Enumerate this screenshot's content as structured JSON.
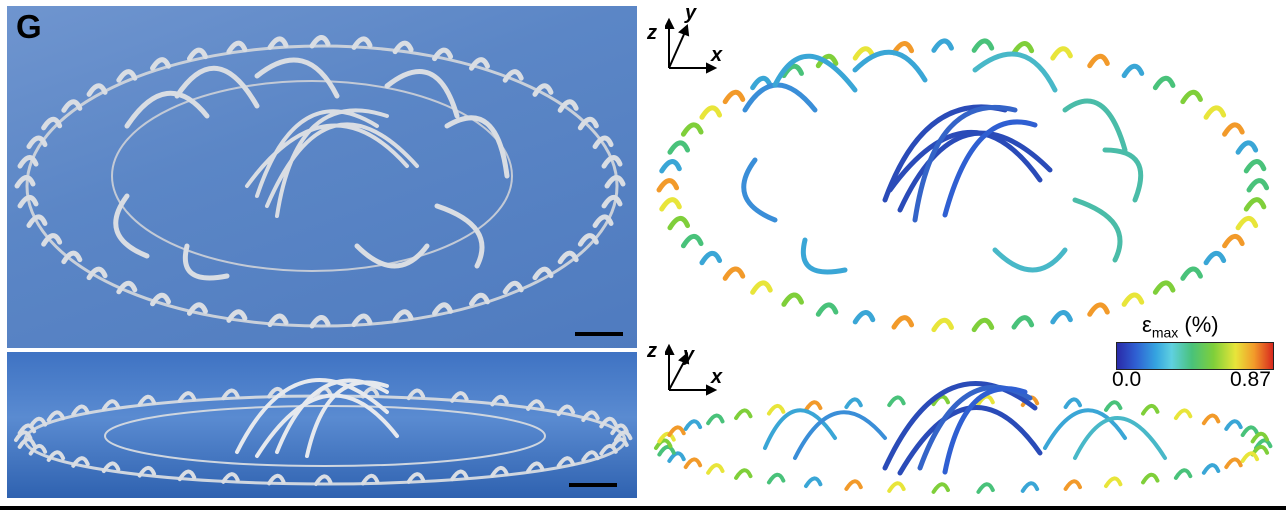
{
  "figure": {
    "panel_label": "G",
    "colorbar": {
      "symbol": "ε",
      "subscript": "max",
      "unit": "(%)",
      "min_label": "0.0",
      "max_label": "0.87"
    },
    "axes": {
      "z": "z",
      "y": "y",
      "x": "x"
    },
    "colors": {
      "sem_background": "#5b86c6",
      "ribbon_sem": "#d9dde3",
      "low": "#2a2aa8",
      "mid": "#49c27a",
      "high": "#d8281e"
    }
  }
}
